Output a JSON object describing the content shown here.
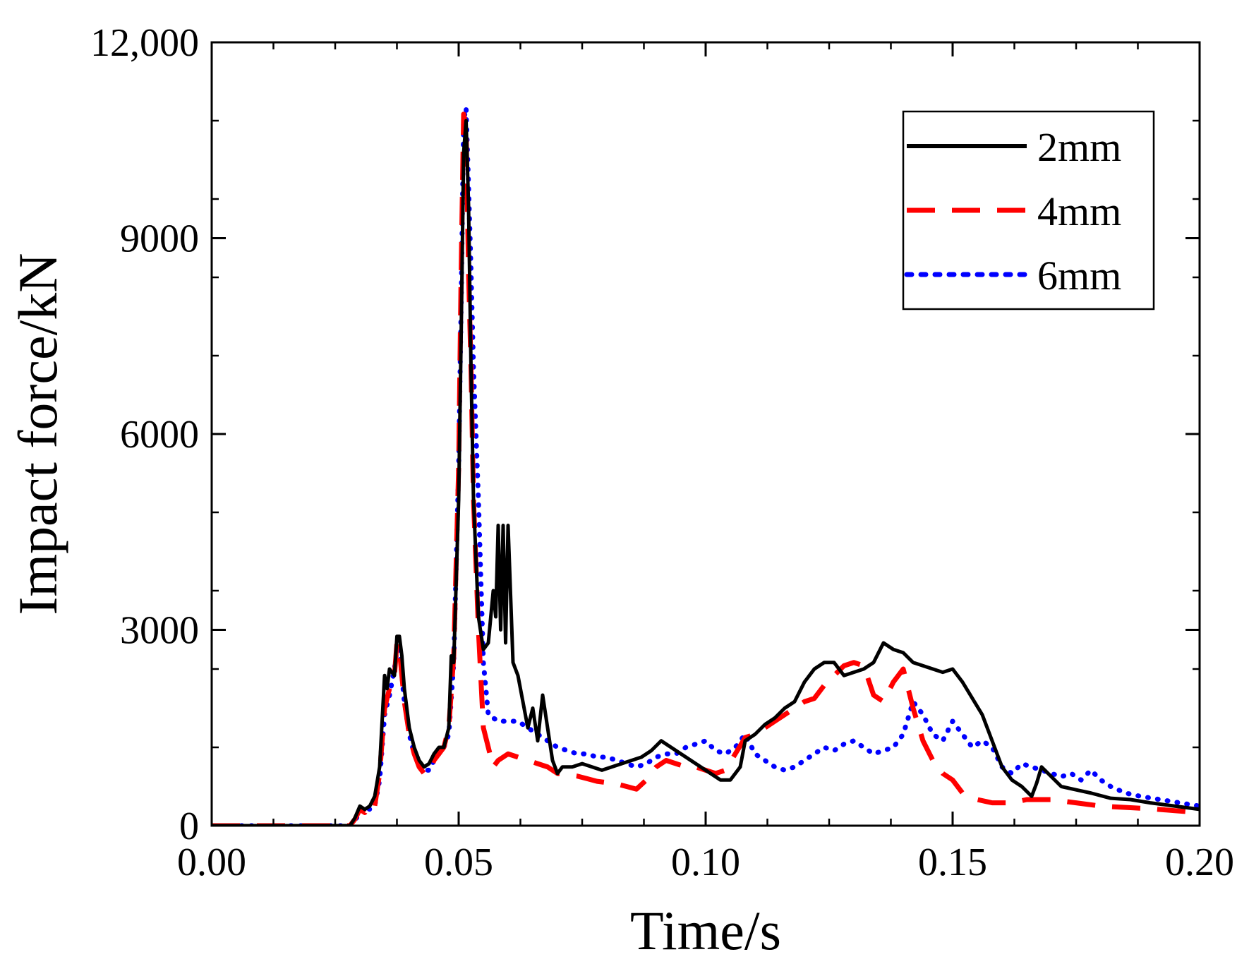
{
  "chart_data": {
    "type": "line",
    "title": "",
    "xlabel": "Time/s",
    "ylabel": "Impact force/kN",
    "xlim": [
      0,
      0.2
    ],
    "ylim": [
      0,
      12000
    ],
    "x_ticks": [
      0,
      0.05,
      0.1,
      0.15,
      0.2
    ],
    "x_tick_labels": [
      "0.00",
      "0.05",
      "0.10",
      "0.15",
      "0.20"
    ],
    "y_ticks": [
      0,
      3000,
      6000,
      9000,
      12000
    ],
    "y_tick_labels": [
      "0",
      "3000",
      "6000",
      "9000",
      "12,000"
    ],
    "x_minor_step": 0.0125,
    "y_minor_step": 1200,
    "grid": false,
    "legend_position": "top-right",
    "series": [
      {
        "name": "2mm",
        "color": "#000000",
        "style": "solid",
        "points": [
          [
            0,
            0
          ],
          [
            0.028,
            0
          ],
          [
            0.029,
            120
          ],
          [
            0.03,
            300
          ],
          [
            0.031,
            250
          ],
          [
            0.032,
            300
          ],
          [
            0.033,
            450
          ],
          [
            0.034,
            900
          ],
          [
            0.035,
            2300
          ],
          [
            0.0355,
            2100
          ],
          [
            0.036,
            2400
          ],
          [
            0.037,
            2300
          ],
          [
            0.0375,
            2900
          ],
          [
            0.038,
            2900
          ],
          [
            0.0385,
            2600
          ],
          [
            0.039,
            2100
          ],
          [
            0.04,
            1500
          ],
          [
            0.041,
            1200
          ],
          [
            0.042,
            1000
          ],
          [
            0.043,
            900
          ],
          [
            0.044,
            950
          ],
          [
            0.045,
            1100
          ],
          [
            0.046,
            1200
          ],
          [
            0.047,
            1200
          ],
          [
            0.048,
            1500
          ],
          [
            0.0485,
            2600
          ],
          [
            0.049,
            2500
          ],
          [
            0.05,
            5000
          ],
          [
            0.0505,
            7500
          ],
          [
            0.051,
            10300
          ],
          [
            0.0515,
            10800
          ],
          [
            0.052,
            9500
          ],
          [
            0.0525,
            7000
          ],
          [
            0.053,
            5000
          ],
          [
            0.054,
            3200
          ],
          [
            0.055,
            2700
          ],
          [
            0.056,
            2800
          ],
          [
            0.057,
            3600
          ],
          [
            0.0575,
            3200
          ],
          [
            0.058,
            4600
          ],
          [
            0.0585,
            3000
          ],
          [
            0.059,
            4600
          ],
          [
            0.0595,
            2800
          ],
          [
            0.06,
            4600
          ],
          [
            0.061,
            2500
          ],
          [
            0.062,
            2300
          ],
          [
            0.063,
            1900
          ],
          [
            0.064,
            1500
          ],
          [
            0.065,
            1800
          ],
          [
            0.066,
            1300
          ],
          [
            0.067,
            2000
          ],
          [
            0.068,
            1500
          ],
          [
            0.069,
            1000
          ],
          [
            0.07,
            800
          ],
          [
            0.071,
            900
          ],
          [
            0.073,
            900
          ],
          [
            0.075,
            950
          ],
          [
            0.077,
            900
          ],
          [
            0.079,
            850
          ],
          [
            0.081,
            900
          ],
          [
            0.083,
            950
          ],
          [
            0.085,
            1000
          ],
          [
            0.087,
            1050
          ],
          [
            0.089,
            1150
          ],
          [
            0.091,
            1300
          ],
          [
            0.093,
            1200
          ],
          [
            0.095,
            1100
          ],
          [
            0.097,
            1000
          ],
          [
            0.099,
            900
          ],
          [
            0.101,
            800
          ],
          [
            0.103,
            700
          ],
          [
            0.105,
            700
          ],
          [
            0.107,
            900
          ],
          [
            0.108,
            1300
          ],
          [
            0.11,
            1400
          ],
          [
            0.112,
            1550
          ],
          [
            0.114,
            1650
          ],
          [
            0.116,
            1800
          ],
          [
            0.118,
            1900
          ],
          [
            0.12,
            2200
          ],
          [
            0.122,
            2400
          ],
          [
            0.124,
            2500
          ],
          [
            0.126,
            2500
          ],
          [
            0.128,
            2300
          ],
          [
            0.13,
            2350
          ],
          [
            0.132,
            2400
          ],
          [
            0.134,
            2500
          ],
          [
            0.136,
            2800
          ],
          [
            0.138,
            2700
          ],
          [
            0.14,
            2650
          ],
          [
            0.142,
            2500
          ],
          [
            0.144,
            2450
          ],
          [
            0.146,
            2400
          ],
          [
            0.148,
            2350
          ],
          [
            0.15,
            2400
          ],
          [
            0.152,
            2200
          ],
          [
            0.154,
            1950
          ],
          [
            0.156,
            1700
          ],
          [
            0.158,
            1300
          ],
          [
            0.16,
            900
          ],
          [
            0.162,
            700
          ],
          [
            0.164,
            600
          ],
          [
            0.166,
            450
          ],
          [
            0.167,
            650
          ],
          [
            0.168,
            900
          ],
          [
            0.17,
            750
          ],
          [
            0.172,
            600
          ],
          [
            0.175,
            550
          ],
          [
            0.178,
            500
          ],
          [
            0.182,
            420
          ],
          [
            0.186,
            400
          ],
          [
            0.19,
            350
          ],
          [
            0.195,
            300
          ],
          [
            0.2,
            250
          ]
        ]
      },
      {
        "name": "4mm",
        "color": "#ff0000",
        "style": "dashed",
        "points": [
          [
            0,
            0
          ],
          [
            0.028,
            0
          ],
          [
            0.029,
            100
          ],
          [
            0.03,
            250
          ],
          [
            0.031,
            200
          ],
          [
            0.032,
            350
          ],
          [
            0.033,
            300
          ],
          [
            0.034,
            800
          ],
          [
            0.035,
            1800
          ],
          [
            0.036,
            2100
          ],
          [
            0.037,
            2300
          ],
          [
            0.0375,
            2800
          ],
          [
            0.038,
            2700
          ],
          [
            0.039,
            1900
          ],
          [
            0.04,
            1400
          ],
          [
            0.041,
            1100
          ],
          [
            0.042,
            900
          ],
          [
            0.043,
            800
          ],
          [
            0.044,
            800
          ],
          [
            0.045,
            1000
          ],
          [
            0.046,
            1100
          ],
          [
            0.047,
            1200
          ],
          [
            0.048,
            1500
          ],
          [
            0.049,
            2600
          ],
          [
            0.05,
            5500
          ],
          [
            0.0505,
            8500
          ],
          [
            0.051,
            10900
          ],
          [
            0.0515,
            10700
          ],
          [
            0.052,
            8500
          ],
          [
            0.0525,
            7000
          ],
          [
            0.053,
            5000
          ],
          [
            0.054,
            3000
          ],
          [
            0.055,
            1500
          ],
          [
            0.056,
            1200
          ],
          [
            0.057,
            900
          ],
          [
            0.058,
            1000
          ],
          [
            0.06,
            1100
          ],
          [
            0.062,
            1050
          ],
          [
            0.064,
            1000
          ],
          [
            0.066,
            950
          ],
          [
            0.068,
            900
          ],
          [
            0.07,
            800
          ],
          [
            0.072,
            780
          ],
          [
            0.074,
            760
          ],
          [
            0.076,
            720
          ],
          [
            0.078,
            680
          ],
          [
            0.08,
            660
          ],
          [
            0.082,
            640
          ],
          [
            0.084,
            600
          ],
          [
            0.086,
            560
          ],
          [
            0.088,
            700
          ],
          [
            0.09,
            900
          ],
          [
            0.092,
            1000
          ],
          [
            0.094,
            950
          ],
          [
            0.096,
            900
          ],
          [
            0.098,
            900
          ],
          [
            0.1,
            850
          ],
          [
            0.102,
            800
          ],
          [
            0.104,
            850
          ],
          [
            0.106,
            1100
          ],
          [
            0.108,
            1350
          ],
          [
            0.11,
            1400
          ],
          [
            0.112,
            1500
          ],
          [
            0.114,
            1600
          ],
          [
            0.116,
            1700
          ],
          [
            0.118,
            1800
          ],
          [
            0.12,
            1900
          ],
          [
            0.122,
            1950
          ],
          [
            0.124,
            2150
          ],
          [
            0.126,
            2300
          ],
          [
            0.128,
            2450
          ],
          [
            0.13,
            2500
          ],
          [
            0.132,
            2450
          ],
          [
            0.134,
            2000
          ],
          [
            0.136,
            1900
          ],
          [
            0.138,
            2200
          ],
          [
            0.14,
            2400
          ],
          [
            0.142,
            1800
          ],
          [
            0.144,
            1300
          ],
          [
            0.146,
            1000
          ],
          [
            0.148,
            800
          ],
          [
            0.15,
            700
          ],
          [
            0.152,
            500
          ],
          [
            0.155,
            400
          ],
          [
            0.158,
            350
          ],
          [
            0.162,
            350
          ],
          [
            0.165,
            400
          ],
          [
            0.17,
            400
          ],
          [
            0.175,
            350
          ],
          [
            0.18,
            300
          ],
          [
            0.185,
            280
          ],
          [
            0.19,
            260
          ],
          [
            0.195,
            230
          ],
          [
            0.2,
            200
          ]
        ]
      },
      {
        "name": "6mm",
        "color": "#0000ff",
        "style": "dotted",
        "points": [
          [
            0,
            0
          ],
          [
            0.028,
            0
          ],
          [
            0.029,
            80
          ],
          [
            0.03,
            200
          ],
          [
            0.031,
            300
          ],
          [
            0.032,
            250
          ],
          [
            0.033,
            300
          ],
          [
            0.034,
            700
          ],
          [
            0.035,
            1700
          ],
          [
            0.036,
            2000
          ],
          [
            0.037,
            2400
          ],
          [
            0.0375,
            2700
          ],
          [
            0.038,
            2700
          ],
          [
            0.039,
            1900
          ],
          [
            0.04,
            1400
          ],
          [
            0.041,
            1100
          ],
          [
            0.042,
            950
          ],
          [
            0.043,
            850
          ],
          [
            0.044,
            850
          ],
          [
            0.045,
            1000
          ],
          [
            0.046,
            1100
          ],
          [
            0.047,
            1200
          ],
          [
            0.048,
            1400
          ],
          [
            0.049,
            2500
          ],
          [
            0.05,
            5500
          ],
          [
            0.0505,
            8000
          ],
          [
            0.051,
            10800
          ],
          [
            0.0515,
            11000
          ],
          [
            0.052,
            9800
          ],
          [
            0.0525,
            8500
          ],
          [
            0.053,
            7000
          ],
          [
            0.054,
            5000
          ],
          [
            0.055,
            2500
          ],
          [
            0.056,
            1700
          ],
          [
            0.058,
            1600
          ],
          [
            0.06,
            1600
          ],
          [
            0.062,
            1600
          ],
          [
            0.064,
            1500
          ],
          [
            0.066,
            1400
          ],
          [
            0.068,
            1300
          ],
          [
            0.07,
            1200
          ],
          [
            0.072,
            1150
          ],
          [
            0.074,
            1100
          ],
          [
            0.076,
            1100
          ],
          [
            0.078,
            1050
          ],
          [
            0.08,
            1050
          ],
          [
            0.082,
            1000
          ],
          [
            0.084,
            950
          ],
          [
            0.086,
            900
          ],
          [
            0.088,
            950
          ],
          [
            0.09,
            1050
          ],
          [
            0.092,
            1100
          ],
          [
            0.094,
            1100
          ],
          [
            0.096,
            1200
          ],
          [
            0.098,
            1250
          ],
          [
            0.1,
            1300
          ],
          [
            0.102,
            1150
          ],
          [
            0.104,
            1100
          ],
          [
            0.106,
            1200
          ],
          [
            0.108,
            1400
          ],
          [
            0.11,
            1100
          ],
          [
            0.112,
            1000
          ],
          [
            0.114,
            900
          ],
          [
            0.116,
            850
          ],
          [
            0.118,
            900
          ],
          [
            0.12,
            1000
          ],
          [
            0.122,
            1100
          ],
          [
            0.124,
            1200
          ],
          [
            0.126,
            1150
          ],
          [
            0.128,
            1250
          ],
          [
            0.13,
            1300
          ],
          [
            0.132,
            1200
          ],
          [
            0.134,
            1100
          ],
          [
            0.136,
            1150
          ],
          [
            0.138,
            1200
          ],
          [
            0.14,
            1400
          ],
          [
            0.142,
            1900
          ],
          [
            0.144,
            1700
          ],
          [
            0.146,
            1400
          ],
          [
            0.148,
            1300
          ],
          [
            0.15,
            1600
          ],
          [
            0.152,
            1400
          ],
          [
            0.154,
            1200
          ],
          [
            0.156,
            1300
          ],
          [
            0.158,
            1200
          ],
          [
            0.16,
            900
          ],
          [
            0.162,
            800
          ],
          [
            0.164,
            950
          ],
          [
            0.166,
            900
          ],
          [
            0.168,
            850
          ],
          [
            0.17,
            800
          ],
          [
            0.172,
            750
          ],
          [
            0.174,
            800
          ],
          [
            0.176,
            700
          ],
          [
            0.178,
            850
          ],
          [
            0.18,
            700
          ],
          [
            0.182,
            600
          ],
          [
            0.185,
            500
          ],
          [
            0.188,
            450
          ],
          [
            0.192,
            400
          ],
          [
            0.196,
            350
          ],
          [
            0.2,
            300
          ]
        ]
      }
    ]
  }
}
